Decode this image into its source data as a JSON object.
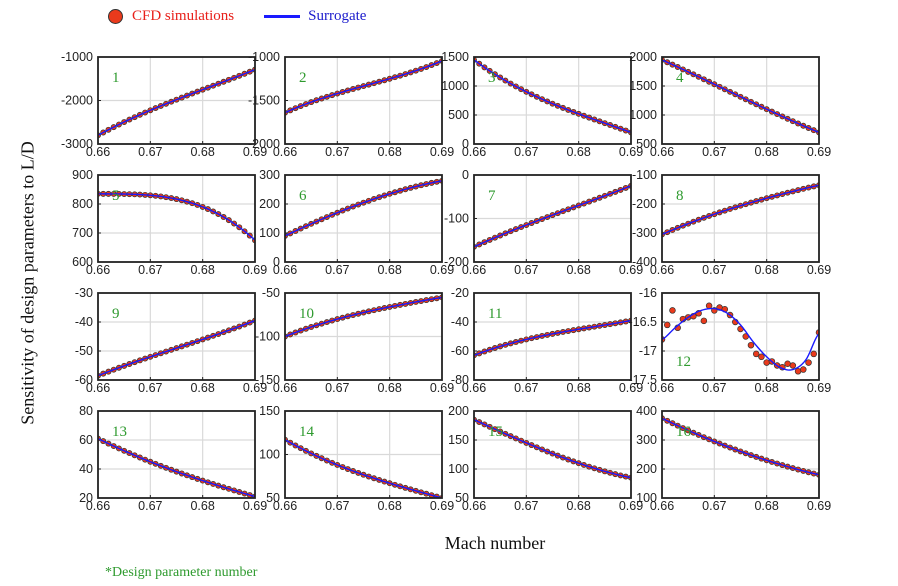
{
  "legend": {
    "cfd_label": "CFD simulations",
    "surrogate_label": "Surrogate"
  },
  "ylabel": "Sensitivity of design parameters to L/D",
  "xlabel": "Mach number",
  "footnote": "*Design parameter number",
  "colors": {
    "cfd_fill": "#ea3a1c",
    "surrogate_line": "#1a1aff",
    "panel_number": "#2e9a2e",
    "grid": "#d9d9d9"
  },
  "chart_data": [
    {
      "type": "line",
      "panel_number": "1",
      "x_ticks": [
        "0.66",
        "0.67",
        "0.68",
        "0.69"
      ],
      "xlim": [
        0.66,
        0.69
      ],
      "ylim": [
        -3000,
        -1000
      ],
      "y_ticks": [
        "-3000",
        "-2000",
        "-1000"
      ],
      "y_tick_values": [
        -3000,
        -2000,
        -1000
      ],
      "points": [
        -2800,
        -2225,
        -1750,
        -1290
      ]
    },
    {
      "type": "line",
      "panel_number": "2",
      "x_ticks": [
        "0.66",
        "0.67",
        "0.68",
        "0.69"
      ],
      "xlim": [
        0.66,
        0.69
      ],
      "ylim": [
        -2000,
        -1000
      ],
      "y_ticks": [
        "-2000",
        "-1500",
        "-1000"
      ],
      "y_tick_values": [
        -2000,
        -1500,
        -1000
      ],
      "points": [
        -1640,
        -1420,
        -1250,
        -1045
      ]
    },
    {
      "type": "line",
      "panel_number": "3",
      "x_ticks": [
        "0.66",
        "0.67",
        "0.68",
        "0.69"
      ],
      "xlim": [
        0.66,
        0.69
      ],
      "ylim": [
        0,
        1500
      ],
      "y_ticks": [
        "0",
        "500",
        "1000",
        "1500"
      ],
      "y_tick_values": [
        0,
        500,
        1000,
        1500
      ],
      "points": [
        1450,
        900,
        520,
        200
      ]
    },
    {
      "type": "line",
      "panel_number": "4",
      "x_ticks": [
        "0.66",
        "0.67",
        "0.68",
        "0.69"
      ],
      "xlim": [
        0.66,
        0.69
      ],
      "ylim": [
        500,
        2000
      ],
      "y_ticks": [
        "500",
        "1000",
        "1500",
        "2000"
      ],
      "y_tick_values": [
        500,
        1000,
        1500,
        2000
      ],
      "points": [
        1950,
        1530,
        1100,
        700
      ]
    },
    {
      "type": "line",
      "panel_number": "5",
      "x_ticks": [
        "0.66",
        "0.67",
        "0.68",
        "0.69"
      ],
      "xlim": [
        0.66,
        0.69
      ],
      "ylim": [
        600,
        900
      ],
      "y_ticks": [
        "600",
        "700",
        "800",
        "900"
      ],
      "y_tick_values": [
        600,
        700,
        800,
        900
      ],
      "points": [
        835,
        830,
        790,
        675
      ]
    },
    {
      "type": "line",
      "panel_number": "6",
      "x_ticks": [
        "0.66",
        "0.67",
        "0.68",
        "0.69"
      ],
      "xlim": [
        0.66,
        0.69
      ],
      "ylim": [
        0,
        300
      ],
      "y_ticks": [
        "0",
        "100",
        "200",
        "300"
      ],
      "y_tick_values": [
        0,
        100,
        200,
        300
      ],
      "points": [
        90,
        170,
        235,
        280
      ]
    },
    {
      "type": "line",
      "panel_number": "7",
      "x_ticks": [
        "0.66",
        "0.67",
        "0.68",
        "0.69"
      ],
      "xlim": [
        0.66,
        0.69
      ],
      "ylim": [
        -200,
        0
      ],
      "y_ticks": [
        "-200",
        "-100",
        "0"
      ],
      "y_tick_values": [
        -200,
        -100,
        0
      ],
      "points": [
        -165,
        -115,
        -70,
        -25
      ]
    },
    {
      "type": "line",
      "panel_number": "8",
      "x_ticks": [
        "0.66",
        "0.67",
        "0.68",
        "0.69"
      ],
      "xlim": [
        0.66,
        0.69
      ],
      "ylim": [
        -400,
        -100
      ],
      "y_ticks": [
        "-400",
        "-300",
        "-200",
        "-100"
      ],
      "y_tick_values": [
        -400,
        -300,
        -200,
        -100
      ],
      "points": [
        -305,
        -235,
        -180,
        -135
      ]
    },
    {
      "type": "line",
      "panel_number": "9",
      "x_ticks": [
        "0.66",
        "0.67",
        "0.68",
        "0.69"
      ],
      "xlim": [
        0.66,
        0.69
      ],
      "ylim": [
        -60,
        -30
      ],
      "y_ticks": [
        "-60",
        "-50",
        "-40",
        "-30"
      ],
      "y_tick_values": [
        -60,
        -50,
        -40,
        -30
      ],
      "points": [
        -58.5,
        -52,
        -46,
        -39.5
      ]
    },
    {
      "type": "line",
      "panel_number": "10",
      "x_ticks": [
        "0.66",
        "0.67",
        "0.68",
        "0.69"
      ],
      "xlim": [
        0.66,
        0.69
      ],
      "ylim": [
        -150,
        -50
      ],
      "y_ticks": [
        "-150",
        "-100",
        "-50"
      ],
      "y_tick_values": [
        -150,
        -100,
        -50
      ],
      "points": [
        -100,
        -80,
        -66,
        -55
      ]
    },
    {
      "type": "line",
      "panel_number": "11",
      "x_ticks": [
        "0.66",
        "0.67",
        "0.68",
        "0.69"
      ],
      "xlim": [
        0.66,
        0.69
      ],
      "ylim": [
        -80,
        -20
      ],
      "y_ticks": [
        "-80",
        "-60",
        "-40",
        "-20"
      ],
      "y_tick_values": [
        -80,
        -60,
        -40,
        -20
      ],
      "points": [
        -63,
        -52,
        -45,
        -39
      ]
    },
    {
      "type": "line",
      "panel_number": "12",
      "x_ticks": [
        "0.66",
        "0.67",
        "0.68",
        "0.69"
      ],
      "xlim": [
        0.66,
        0.69
      ],
      "ylim": [
        -17.5,
        -16
      ],
      "y_ticks": [
        "-17.5",
        "-17",
        "-16.5",
        "-16"
      ],
      "y_tick_values": [
        -17.5,
        -17,
        -16.5,
        -16
      ],
      "surrogate_x": [
        0.66,
        0.6625,
        0.665,
        0.6675,
        0.67,
        0.6725,
        0.675,
        0.6775,
        0.68,
        0.6825,
        0.685,
        0.6875,
        0.69
      ],
      "surrogate_y": [
        -16.8,
        -16.6,
        -16.42,
        -16.3,
        -16.27,
        -16.35,
        -16.55,
        -16.85,
        -17.1,
        -17.28,
        -17.32,
        -17.15,
        -16.7
      ],
      "cfd_x": [
        0.66,
        0.661,
        0.662,
        0.663,
        0.664,
        0.665,
        0.666,
        0.667,
        0.668,
        0.669,
        0.67,
        0.671,
        0.672,
        0.673,
        0.674,
        0.675,
        0.676,
        0.677,
        0.678,
        0.679,
        0.68,
        0.681,
        0.682,
        0.683,
        0.684,
        0.685,
        0.686,
        0.687,
        0.688,
        0.689,
        0.69
      ],
      "cfd_y": [
        -16.8,
        -16.55,
        -16.3,
        -16.6,
        -16.45,
        -16.42,
        -16.4,
        -16.35,
        -16.48,
        -16.22,
        -16.3,
        -16.25,
        -16.28,
        -16.38,
        -16.5,
        -16.62,
        -16.75,
        -16.9,
        -17.05,
        -17.1,
        -17.2,
        -17.18,
        -17.25,
        -17.28,
        -17.22,
        -17.25,
        -17.35,
        -17.32,
        -17.2,
        -17.05,
        -16.68
      ]
    },
    {
      "type": "line",
      "panel_number": "13",
      "x_ticks": [
        "0.66",
        "0.67",
        "0.68",
        "0.69"
      ],
      "xlim": [
        0.66,
        0.69
      ],
      "ylim": [
        20,
        80
      ],
      "y_ticks": [
        "20",
        "40",
        "60",
        "80"
      ],
      "y_tick_values": [
        20,
        40,
        60,
        80
      ],
      "points": [
        61,
        45,
        32,
        21
      ]
    },
    {
      "type": "line",
      "panel_number": "14",
      "x_ticks": [
        "0.66",
        "0.67",
        "0.68",
        "0.69"
      ],
      "xlim": [
        0.66,
        0.69
      ],
      "ylim": [
        50,
        150
      ],
      "y_ticks": [
        "50",
        "100",
        "150"
      ],
      "y_tick_values": [
        50,
        100,
        150
      ],
      "points": [
        117,
        88,
        67,
        50
      ]
    },
    {
      "type": "line",
      "panel_number": "15",
      "x_ticks": [
        "0.66",
        "0.67",
        "0.68",
        "0.69"
      ],
      "xlim": [
        0.66,
        0.69
      ],
      "ylim": [
        50,
        200
      ],
      "y_ticks": [
        "50",
        "100",
        "150",
        "200"
      ],
      "y_tick_values": [
        50,
        100,
        150,
        200
      ],
      "points": [
        185,
        145,
        110,
        85
      ]
    },
    {
      "type": "line",
      "panel_number": "16",
      "x_ticks": [
        "0.66",
        "0.67",
        "0.68",
        "0.69"
      ],
      "xlim": [
        0.66,
        0.69
      ],
      "ylim": [
        100,
        400
      ],
      "y_ticks": [
        "100",
        "200",
        "300",
        "400"
      ],
      "y_tick_values": [
        100,
        200,
        300,
        400
      ],
      "points": [
        375,
        295,
        230,
        180
      ]
    }
  ]
}
